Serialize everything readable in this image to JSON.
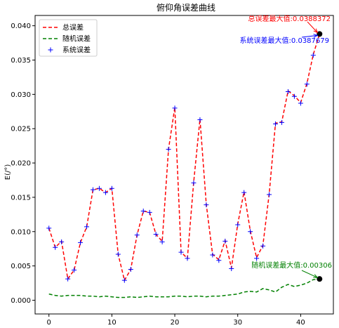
{
  "chart_data": {
    "type": "line",
    "title": "俯仰角误差曲线",
    "xlabel": "",
    "ylabel": "E(/°)",
    "xlim": [
      -2.2,
      45.2
    ],
    "ylim": [
      -0.002,
      0.0415
    ],
    "xticks": [
      0,
      10,
      20,
      30,
      40
    ],
    "yticks": [
      0.0,
      0.005,
      0.01,
      0.015,
      0.02,
      0.025,
      0.03,
      0.035,
      0.04
    ],
    "ytick_labels": [
      "0.000",
      "0.005",
      "0.010",
      "0.015",
      "0.020",
      "0.025",
      "0.030",
      "0.035",
      "0.040"
    ],
    "legend_position": "top-left",
    "grid": false,
    "x": [
      0,
      1,
      2,
      3,
      4,
      5,
      6,
      7,
      8,
      9,
      10,
      11,
      12,
      13,
      14,
      15,
      16,
      17,
      18,
      19,
      20,
      21,
      22,
      23,
      24,
      25,
      26,
      27,
      28,
      29,
      30,
      31,
      32,
      33,
      34,
      35,
      36,
      37,
      38,
      39,
      40,
      41,
      42,
      43
    ],
    "series": [
      {
        "name": "总误差",
        "style": "dashed",
        "color": "#ff0000",
        "values": [
          0.0105,
          0.0077,
          0.0086,
          0.0031,
          0.0044,
          0.0084,
          0.0107,
          0.0161,
          0.0163,
          0.0157,
          0.0163,
          0.0067,
          0.0029,
          0.0045,
          0.0095,
          0.013,
          0.0128,
          0.0096,
          0.0086,
          0.022,
          0.0281,
          0.007,
          0.0061,
          0.0172,
          0.0264,
          0.014,
          0.0067,
          0.0059,
          0.0087,
          0.0047,
          0.0111,
          0.0158,
          0.0101,
          0.0062,
          0.008,
          0.0155,
          0.0258,
          0.026,
          0.0305,
          0.0298,
          0.0288,
          0.0316,
          0.0358,
          0.0388
        ]
      },
      {
        "name": "随机误差",
        "style": "dashed",
        "color": "#008000",
        "values": [
          0.0009,
          0.0007,
          0.0006,
          0.0007,
          0.0007,
          0.0007,
          0.0006,
          0.0006,
          0.0005,
          0.0006,
          0.0005,
          0.0004,
          0.0004,
          0.0005,
          0.0004,
          0.0005,
          0.0006,
          0.0005,
          0.0005,
          0.0005,
          0.0006,
          0.0006,
          0.0005,
          0.0006,
          0.0006,
          0.0005,
          0.0006,
          0.0006,
          0.0007,
          0.0008,
          0.0009,
          0.0012,
          0.0013,
          0.0012,
          0.0017,
          0.0015,
          0.0012,
          0.0019,
          0.0023,
          0.002,
          0.0022,
          0.0025,
          0.003,
          0.0031
        ]
      },
      {
        "name": "系统误差",
        "style": "marker-plus",
        "color": "#0000ff",
        "values": [
          0.0105,
          0.0077,
          0.0085,
          0.0031,
          0.0044,
          0.0084,
          0.0107,
          0.0161,
          0.0163,
          0.0157,
          0.0163,
          0.0067,
          0.0029,
          0.0045,
          0.0095,
          0.013,
          0.0128,
          0.0096,
          0.0085,
          0.022,
          0.028,
          0.007,
          0.0061,
          0.0171,
          0.0263,
          0.0139,
          0.0066,
          0.0058,
          0.0086,
          0.0046,
          0.011,
          0.0157,
          0.01,
          0.0061,
          0.0079,
          0.0154,
          0.0257,
          0.0259,
          0.0304,
          0.0297,
          0.0287,
          0.0315,
          0.0357,
          0.0388
        ]
      }
    ],
    "annotations": [
      {
        "text": "总误差最大值:0.0388372",
        "color": "#ff0000",
        "x": 43,
        "y": 0.0388
      },
      {
        "text": "系统误差最大值:0.0387679",
        "color": "#0000ff",
        "x": 43,
        "y": 0.0388
      },
      {
        "text": "随机误差最大值:0.00306",
        "color": "#008000",
        "x": 43,
        "y": 0.0031
      }
    ]
  }
}
